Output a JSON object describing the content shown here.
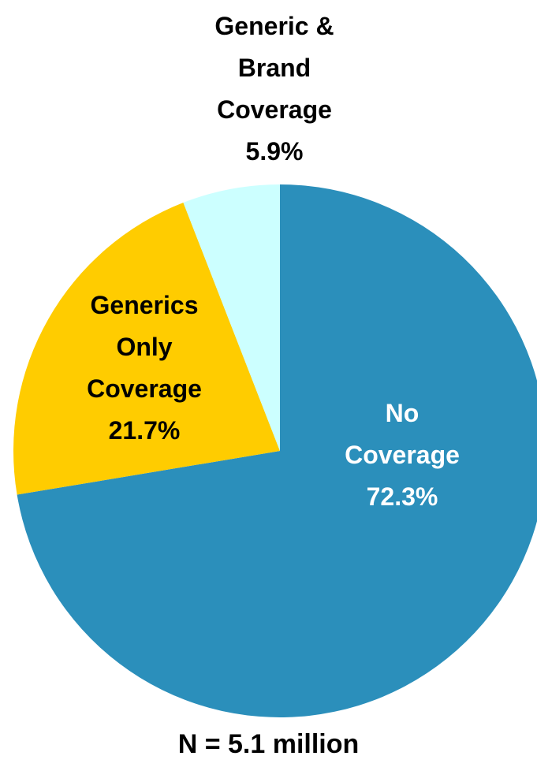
{
  "chart_data": {
    "type": "pie",
    "slices": [
      {
        "label": [
          "No",
          "Coverage",
          "72.3%"
        ],
        "value": 72.3,
        "color": "#2b8fbb",
        "text_color": "#ffffff"
      },
      {
        "label": [
          "Generics",
          "Only",
          "Coverage",
          "21.7%"
        ],
        "value": 21.7,
        "color": "#ffcc00",
        "text_color": "#000000"
      },
      {
        "label": [
          "Generic &",
          "Brand",
          "Coverage",
          "5.9%"
        ],
        "value": 5.9,
        "color": "#ccffff",
        "text_color": "#000000"
      }
    ],
    "start": "12 o'clock",
    "direction": "clockwise",
    "note": "N = 5.1 million"
  }
}
